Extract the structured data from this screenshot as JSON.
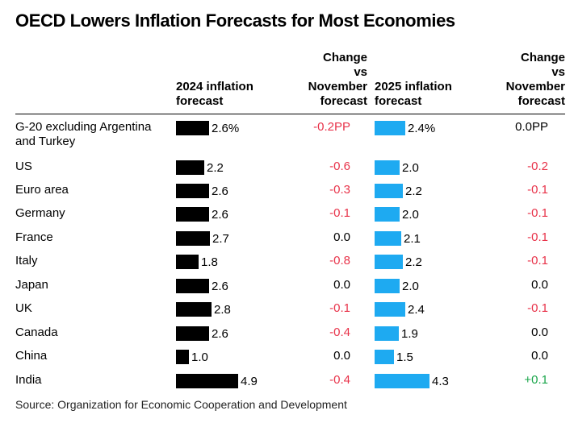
{
  "title": "OECD Lowers Inflation Forecasts for Most Economies",
  "headers": {
    "col_2024": [
      "2024 inflation",
      "forecast"
    ],
    "col_change_2024": [
      "Change",
      "vs",
      "November",
      "forecast"
    ],
    "col_2025": [
      "2025 inflation",
      "forecast"
    ],
    "col_change_2025": [
      "Change",
      "vs",
      "November",
      "forecast"
    ]
  },
  "source": "Source: Organization for Economic Cooperation and Development",
  "colors": {
    "bar_2024": "#000000",
    "bar_2025": "#1eaaf1",
    "negative": "#e8334a",
    "positive": "#1aa64b",
    "neutral": "#000000"
  },
  "chart_data": {
    "type": "table",
    "columns": [
      "2024 inflation forecast",
      "Change vs November forecast",
      "2025 inflation forecast",
      "Change vs November forecast"
    ],
    "rows": [
      {
        "country": [
          "G-20 excluding Argentina",
          "and Turkey"
        ],
        "f2024": 2.6,
        "f2024_label": "2.6%",
        "chg2024": "-0.2PP",
        "f2025": 2.4,
        "f2025_label": "2.4%",
        "chg2025": "0.0PP"
      },
      {
        "country": [
          "US"
        ],
        "f2024": 2.2,
        "f2024_label": "2.2",
        "chg2024": "-0.6",
        "f2025": 2.0,
        "f2025_label": "2.0",
        "chg2025": "-0.2"
      },
      {
        "country": [
          "Euro area"
        ],
        "f2024": 2.6,
        "f2024_label": "2.6",
        "chg2024": "-0.3",
        "f2025": 2.2,
        "f2025_label": "2.2",
        "chg2025": "-0.1"
      },
      {
        "country": [
          "Germany"
        ],
        "f2024": 2.6,
        "f2024_label": "2.6",
        "chg2024": "-0.1",
        "f2025": 2.0,
        "f2025_label": "2.0",
        "chg2025": "-0.1"
      },
      {
        "country": [
          "France"
        ],
        "f2024": 2.7,
        "f2024_label": "2.7",
        "chg2024": "0.0",
        "f2025": 2.1,
        "f2025_label": "2.1",
        "chg2025": "-0.1"
      },
      {
        "country": [
          "Italy"
        ],
        "f2024": 1.8,
        "f2024_label": "1.8",
        "chg2024": "-0.8",
        "f2025": 2.2,
        "f2025_label": "2.2",
        "chg2025": "-0.1"
      },
      {
        "country": [
          "Japan"
        ],
        "f2024": 2.6,
        "f2024_label": "2.6",
        "chg2024": "0.0",
        "f2025": 2.0,
        "f2025_label": "2.0",
        "chg2025": "0.0"
      },
      {
        "country": [
          "UK"
        ],
        "f2024": 2.8,
        "f2024_label": "2.8",
        "chg2024": "-0.1",
        "f2025": 2.4,
        "f2025_label": "2.4",
        "chg2025": "-0.1"
      },
      {
        "country": [
          "Canada"
        ],
        "f2024": 2.6,
        "f2024_label": "2.6",
        "chg2024": "-0.4",
        "f2025": 1.9,
        "f2025_label": "1.9",
        "chg2025": "0.0"
      },
      {
        "country": [
          "China"
        ],
        "f2024": 1.0,
        "f2024_label": "1.0",
        "chg2024": "0.0",
        "f2025": 1.5,
        "f2025_label": "1.5",
        "chg2025": "0.0"
      },
      {
        "country": [
          "India"
        ],
        "f2024": 4.9,
        "f2024_label": "4.9",
        "chg2024": "-0.4",
        "f2025": 4.3,
        "f2025_label": "4.3",
        "chg2025": "+0.1"
      }
    ]
  }
}
